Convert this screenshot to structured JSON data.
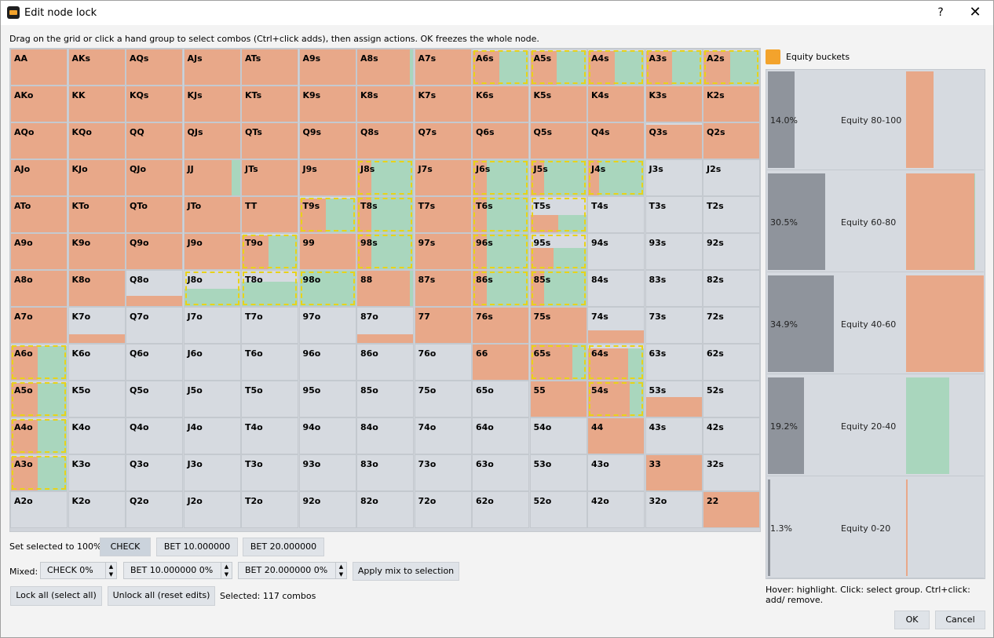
{
  "window": {
    "title": "Edit node lock",
    "help": "?",
    "close": "✕"
  },
  "instructions": "Drag on the grid or click a hand group to select combos (Ctrl+click adds), then assign actions. OK freezes the whole node.",
  "colors": {
    "check": "#e8a889",
    "bet10": "#a9d6bd",
    "empty": "#d6dae0",
    "selected_border": "#e8d21a",
    "equity_bar": "#8f949c",
    "accent": "#f3a32c"
  },
  "grid": {
    "rows": [
      [
        "AA",
        "AKs",
        "AQs",
        "AJs",
        "ATs",
        "A9s",
        "A8s",
        "A7s",
        "A6s",
        "A5s",
        "A4s",
        "A3s",
        "A2s"
      ],
      [
        "AKo",
        "KK",
        "KQs",
        "KJs",
        "KTs",
        "K9s",
        "K8s",
        "K7s",
        "K6s",
        "K5s",
        "K4s",
        "K3s",
        "K2s"
      ],
      [
        "AQo",
        "KQo",
        "QQ",
        "QJs",
        "QTs",
        "Q9s",
        "Q8s",
        "Q7s",
        "Q6s",
        "Q5s",
        "Q4s",
        "Q3s",
        "Q2s"
      ],
      [
        "AJo",
        "KJo",
        "QJo",
        "JJ",
        "JTs",
        "J9s",
        "J8s",
        "J7s",
        "J6s",
        "J5s",
        "J4s",
        "J3s",
        "J2s"
      ],
      [
        "ATo",
        "KTo",
        "QTo",
        "JTo",
        "TT",
        "T9s",
        "T8s",
        "T7s",
        "T6s",
        "T5s",
        "T4s",
        "T3s",
        "T2s"
      ],
      [
        "A9o",
        "K9o",
        "Q9o",
        "J9o",
        "T9o",
        "99",
        "98s",
        "97s",
        "96s",
        "95s",
        "94s",
        "93s",
        "92s"
      ],
      [
        "A8o",
        "K8o",
        "Q8o",
        "J8o",
        "T8o",
        "98o",
        "88",
        "87s",
        "86s",
        "85s",
        "84s",
        "83s",
        "82s"
      ],
      [
        "A7o",
        "K7o",
        "Q7o",
        "J7o",
        "T7o",
        "97o",
        "87o",
        "77",
        "76s",
        "75s",
        "74s",
        "73s",
        "72s"
      ],
      [
        "A6o",
        "K6o",
        "Q6o",
        "J6o",
        "T6o",
        "96o",
        "86o",
        "76o",
        "66",
        "65s",
        "64s",
        "63s",
        "62s"
      ],
      [
        "A5o",
        "K5o",
        "Q5o",
        "J5o",
        "T5o",
        "95o",
        "85o",
        "75o",
        "65o",
        "55",
        "54s",
        "53s",
        "52s"
      ],
      [
        "A4o",
        "K4o",
        "Q4o",
        "J4o",
        "T4o",
        "94o",
        "84o",
        "74o",
        "64o",
        "54o",
        "44",
        "43s",
        "42s"
      ],
      [
        "A3o",
        "K3o",
        "Q3o",
        "J3o",
        "T3o",
        "93o",
        "83o",
        "73o",
        "63o",
        "53o",
        "43o",
        "33",
        "32s"
      ],
      [
        "A2o",
        "K2o",
        "Q2o",
        "J2o",
        "T2o",
        "92o",
        "82o",
        "72o",
        "62o",
        "52o",
        "42o",
        "32o",
        "22"
      ]
    ],
    "frequencies": {
      "AA": [
        1,
        0
      ],
      "AKs": [
        1,
        0
      ],
      "AQs": [
        1,
        0
      ],
      "AJs": [
        0.99,
        0
      ],
      "ATs": [
        1,
        0
      ],
      "A9s": [
        1,
        0
      ],
      "A8s": [
        0.93,
        0.05
      ],
      "A7s": [
        1,
        0
      ],
      "A6s": [
        0.45,
        0.5
      ],
      "A5s": [
        0.45,
        0.5
      ],
      "A4s": [
        0.45,
        0.5
      ],
      "A3s": [
        0.45,
        0.5
      ],
      "A2s": [
        0.45,
        0.5
      ],
      "AKo": [
        1,
        0
      ],
      "KK": [
        1,
        0
      ],
      "KQs": [
        1,
        0
      ],
      "KJs": [
        1,
        0
      ],
      "KTs": [
        1,
        0
      ],
      "K9s": [
        1,
        0
      ],
      "K8s": [
        1,
        0
      ],
      "K7s": [
        1,
        0
      ],
      "K6s": [
        1,
        0
      ],
      "K5s": [
        1,
        0
      ],
      "K4s": [
        1,
        0
      ],
      "K3s": [
        1,
        0
      ],
      "K2s": [
        1,
        0
      ],
      "AQo": [
        1,
        0
      ],
      "KQo": [
        1,
        0
      ],
      "QQ": [
        1,
        0
      ],
      "QJs": [
        1,
        0
      ],
      "QTs": [
        1,
        0
      ],
      "Q9s": [
        1,
        0
      ],
      "Q8s": [
        1,
        0
      ],
      "Q7s": [
        1,
        0
      ],
      "Q6s": [
        1,
        0
      ],
      "Q5s": [
        1,
        0
      ],
      "Q4s": [
        1,
        0
      ],
      "Q3s": [
        0.95,
        0
      ],
      "Q2s": [
        0.97,
        0
      ],
      "AJo": [
        1,
        0
      ],
      "KJo": [
        1,
        0
      ],
      "QJo": [
        1,
        0
      ],
      "JJ": [
        0.85,
        0.15
      ],
      "JTs": [
        1,
        0
      ],
      "J9s": [
        1,
        0
      ],
      "J8s": [
        0.25,
        0.75
      ],
      "J7s": [
        1,
        0
      ],
      "J6s": [
        0.25,
        0.75
      ],
      "J5s": [
        0.25,
        0.75
      ],
      "J4s": [
        0.2,
        0.8
      ],
      "J3s": [
        0,
        0
      ],
      "J2s": [
        0,
        0
      ],
      "ATo": [
        1,
        0
      ],
      "KTo": [
        1,
        0
      ],
      "QTo": [
        1,
        0
      ],
      "JTo": [
        1,
        0
      ],
      "TT": [
        1,
        0
      ],
      "T9s": [
        0.45,
        0.5
      ],
      "T8s": [
        0.25,
        0.75
      ],
      "T7s": [
        1,
        0
      ],
      "T6s": [
        0.25,
        0.75
      ],
      "T5s": [
        0.25,
        0.25
      ],
      "T4s": [
        0,
        0
      ],
      "T3s": [
        0,
        0
      ],
      "T2s": [
        0,
        0
      ],
      "A9o": [
        1,
        0
      ],
      "K9o": [
        1,
        0
      ],
      "Q9o": [
        1,
        0
      ],
      "J9o": [
        1,
        0
      ],
      "T9o": [
        0.45,
        0.5
      ],
      "99": [
        1,
        0
      ],
      "98s": [
        0.25,
        0.75
      ],
      "97s": [
        1,
        0
      ],
      "96s": [
        0.25,
        0.75
      ],
      "95s": [
        0.25,
        0.35
      ],
      "94s": [
        0,
        0
      ],
      "93s": [
        0,
        0
      ],
      "92s": [
        0,
        0
      ],
      "A8o": [
        1,
        0
      ],
      "K8o": [
        1,
        0
      ],
      "Q8o": [
        0.3,
        0
      ],
      "J8o": [
        0,
        0.5
      ],
      "T8o": [
        0,
        0.7
      ],
      "98o": [
        0,
        1
      ],
      "88": [
        0.95,
        0.05
      ],
      "87s": [
        1,
        0
      ],
      "86s": [
        0.25,
        0.75
      ],
      "85s": [
        0.25,
        0.75
      ],
      "84s": [
        0,
        0
      ],
      "83s": [
        0,
        0
      ],
      "82s": [
        0,
        0
      ],
      "A7o": [
        1,
        0
      ],
      "K7o": [
        0.25,
        0
      ],
      "Q7o": [
        0,
        0
      ],
      "J7o": [
        0,
        0
      ],
      "T7o": [
        0,
        0
      ],
      "97o": [
        0,
        0
      ],
      "87o": [
        0.25,
        0
      ],
      "77": [
        1,
        0
      ],
      "76s": [
        1,
        0
      ],
      "75s": [
        1,
        0
      ],
      "74s": [
        0.35,
        0
      ],
      "73s": [
        0,
        0
      ],
      "72s": [
        0,
        0
      ],
      "A6o": [
        0.45,
        0.5
      ],
      "K6o": [
        0,
        0
      ],
      "Q6o": [
        0,
        0
      ],
      "J6o": [
        0,
        0
      ],
      "T6o": [
        0,
        0
      ],
      "96o": [
        0,
        0
      ],
      "86o": [
        0,
        0
      ],
      "76o": [
        0,
        0
      ],
      "66": [
        1,
        0
      ],
      "65s": [
        0.75,
        0.25
      ],
      "64s": [
        0.65,
        0.25
      ],
      "63s": [
        0,
        0
      ],
      "62s": [
        0,
        0
      ],
      "A5o": [
        0.45,
        0.5
      ],
      "K5o": [
        0,
        0
      ],
      "Q5o": [
        0,
        0
      ],
      "J5o": [
        0,
        0
      ],
      "T5o": [
        0,
        0
      ],
      "95o": [
        0,
        0
      ],
      "85o": [
        0,
        0
      ],
      "75o": [
        0,
        0
      ],
      "65o": [
        0,
        0
      ],
      "55": [
        1,
        0
      ],
      "54s": [
        0.75,
        0.25
      ],
      "53s": [
        0.55,
        0
      ],
      "52s": [
        0,
        0
      ],
      "A4o": [
        0.45,
        0.5
      ],
      "K4o": [
        0,
        0
      ],
      "Q4o": [
        0,
        0
      ],
      "J4o": [
        0,
        0
      ],
      "T4o": [
        0,
        0
      ],
      "94o": [
        0,
        0
      ],
      "84o": [
        0,
        0
      ],
      "74o": [
        0,
        0
      ],
      "64o": [
        0,
        0
      ],
      "54o": [
        0,
        0
      ],
      "44": [
        1,
        0
      ],
      "43s": [
        0,
        0
      ],
      "42s": [
        0,
        0
      ],
      "A3o": [
        0.45,
        0.5
      ],
      "K3o": [
        0,
        0
      ],
      "Q3o": [
        0,
        0
      ],
      "J3o": [
        0,
        0
      ],
      "T3o": [
        0,
        0
      ],
      "93o": [
        0,
        0
      ],
      "83o": [
        0,
        0
      ],
      "73o": [
        0,
        0
      ],
      "63o": [
        0,
        0
      ],
      "53o": [
        0,
        0
      ],
      "43o": [
        0,
        0
      ],
      "33": [
        1,
        0
      ],
      "32s": [
        0,
        0
      ],
      "A2o": [
        0,
        0
      ],
      "K2o": [
        0,
        0
      ],
      "Q2o": [
        0,
        0
      ],
      "J2o": [
        0,
        0
      ],
      "T2o": [
        0,
        0
      ],
      "92o": [
        0,
        0
      ],
      "82o": [
        0,
        0
      ],
      "72o": [
        0,
        0
      ],
      "62o": [
        0,
        0
      ],
      "52o": [
        0,
        0
      ],
      "42o": [
        0,
        0
      ],
      "32o": [
        0,
        0
      ],
      "22": [
        1,
        0
      ]
    },
    "selected": [
      "A6s",
      "A5s",
      "A4s",
      "A3s",
      "A2s",
      "J8s",
      "J6s",
      "J5s",
      "J4s",
      "T9s",
      "T8s",
      "T6s",
      "T5s",
      "T9o",
      "98s",
      "96s",
      "95s",
      "J8o",
      "T8o",
      "98o",
      "86s",
      "85s",
      "A6o",
      "65s",
      "64s",
      "A5o",
      "54s",
      "A4o",
      "A3o"
    ]
  },
  "set_selected": {
    "label": "Set selected to 100%:",
    "buttons": [
      "CHECK",
      "BET 10.000000",
      "BET 20.000000"
    ]
  },
  "mixed": {
    "label": "Mixed:",
    "spinners": [
      "CHECK 0%",
      "BET 10.000000 0%",
      "BET 20.000000 0%"
    ],
    "apply_label": "Apply mix to selection"
  },
  "lock": {
    "lock_all": "Lock all (select all)",
    "unlock_all": "Unlock all (reset edits)",
    "selected_text": "Selected: 117 combos"
  },
  "equity": {
    "legend": "Equity buckets",
    "buckets": [
      {
        "pct": "14.0%",
        "name": "Equity 80-100",
        "value": 0.14,
        "check": 0.3,
        "bet": 0
      },
      {
        "pct": "30.5%",
        "name": "Equity 60-80",
        "value": 0.305,
        "check": 0.74,
        "bet": 0.01
      },
      {
        "pct": "34.9%",
        "name": "Equity 40-60",
        "value": 0.349,
        "check": 0.85,
        "bet": 0
      },
      {
        "pct": "19.2%",
        "name": "Equity 20-40",
        "value": 0.192,
        "check": 0,
        "bet": 0.47
      },
      {
        "pct": "1.3%",
        "name": "Equity 0-20",
        "value": 0.013,
        "check": 0.02,
        "bet": 0
      }
    ]
  },
  "hover_help": "Hover: highlight. Click: select group. Ctrl+click: add/ remove.",
  "footer": {
    "ok": "OK",
    "cancel": "Cancel"
  }
}
